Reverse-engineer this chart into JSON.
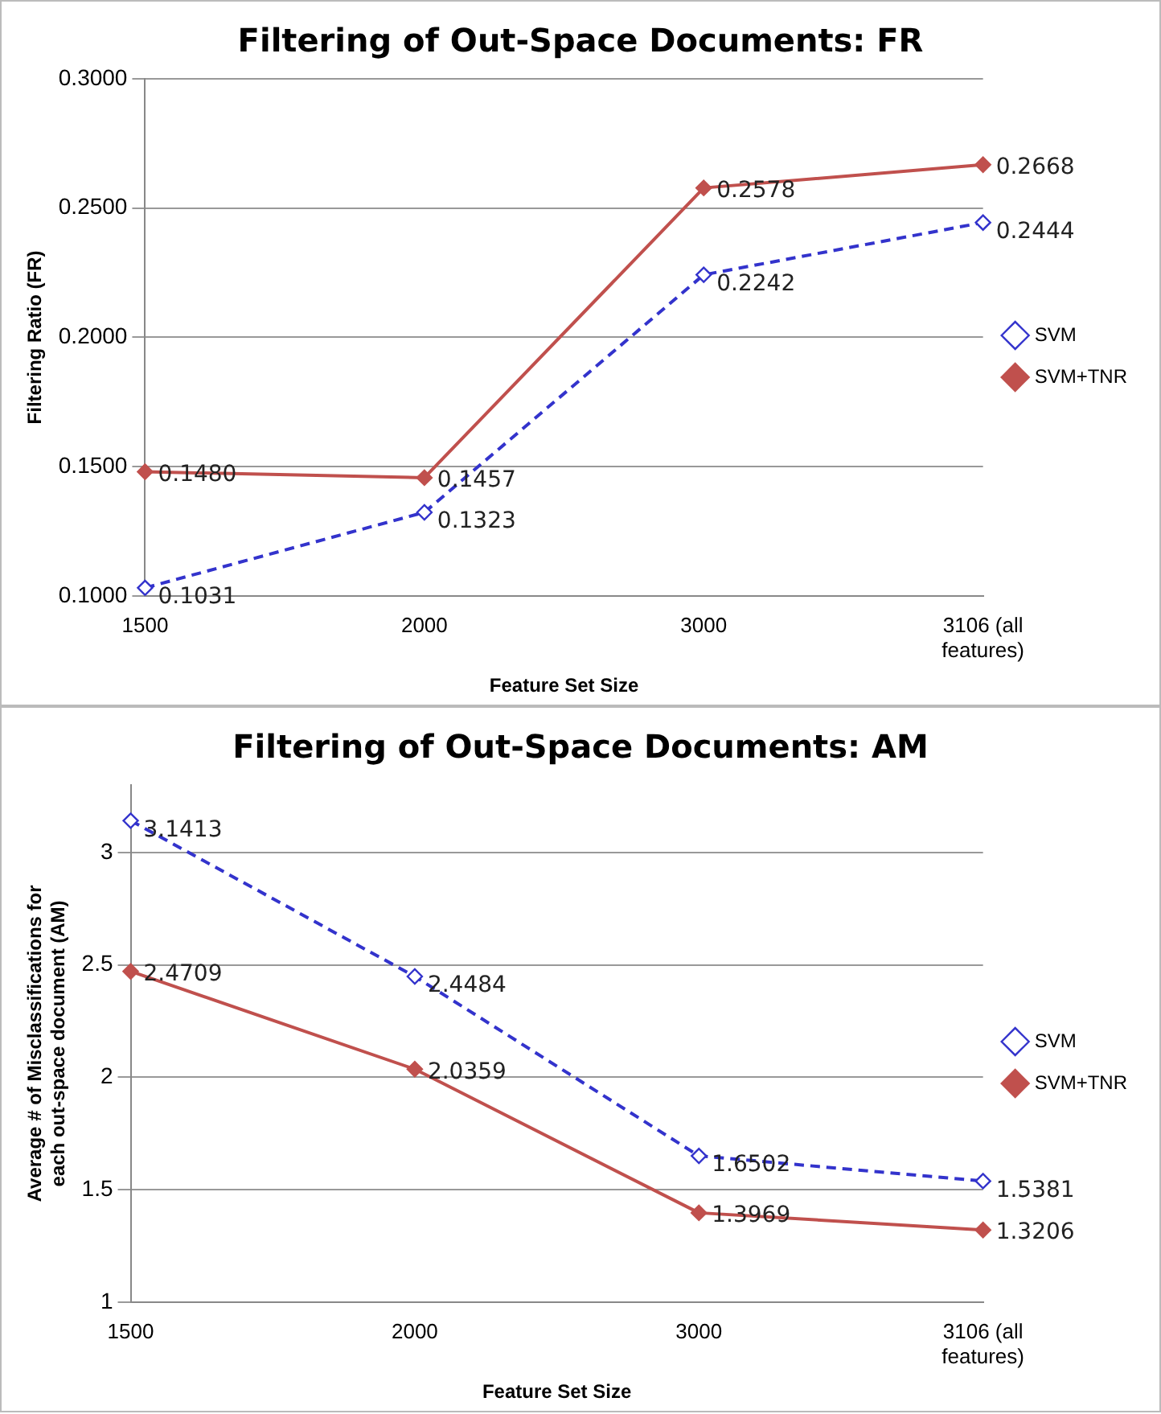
{
  "chart_data": [
    {
      "type": "line",
      "title": "Filtering of Out-Space Documents: FR",
      "xlabel": "Feature Set Size",
      "ylabel": "Filtering Ratio (FR)",
      "categories": [
        "1500",
        "2000",
        "3000",
        "3106 (all features)"
      ],
      "series": [
        {
          "name": "SVM",
          "color": "#3333cc",
          "line_style": "dashed",
          "values": [
            0.1031,
            0.1323,
            0.2242,
            0.2444
          ],
          "value_labels": [
            "0.1031",
            "0.1323",
            "0.2242",
            "0.2444"
          ]
        },
        {
          "name": "SVM+TNR",
          "color": "#c0504d",
          "line_style": "solid",
          "values": [
            0.148,
            0.1457,
            0.2578,
            0.2668
          ],
          "value_labels": [
            "0.1480",
            "0.1457",
            "0.2578",
            "0.2668"
          ]
        }
      ],
      "ylim": [
        0.1,
        0.3
      ],
      "yticks": [
        {
          "value": 0.1,
          "label": "0.1000"
        },
        {
          "value": 0.15,
          "label": "0.1500"
        },
        {
          "value": 0.2,
          "label": "0.2000"
        },
        {
          "value": 0.25,
          "label": "0.2500"
        },
        {
          "value": 0.3,
          "label": "0.3000"
        }
      ],
      "grid": "y",
      "legend": "right",
      "marker": "diamond"
    },
    {
      "type": "line",
      "title": "Filtering of Out-Space Documents: AM",
      "xlabel": "Feature Set Size",
      "ylabel": "Average # of Misclassifications for each out-space document (AM)",
      "categories": [
        "1500",
        "2000",
        "3000",
        "3106 (all features)"
      ],
      "series": [
        {
          "name": "SVM",
          "color": "#3333cc",
          "line_style": "dashed",
          "values": [
            3.1413,
            2.4484,
            1.6502,
            1.5381
          ],
          "value_labels": [
            "3.1413",
            "2.4484",
            "1.6502",
            "1.5381"
          ]
        },
        {
          "name": "SVM+TNR",
          "color": "#c0504d",
          "line_style": "solid",
          "values": [
            2.4709,
            2.0359,
            1.3969,
            1.3206
          ],
          "value_labels": [
            "2.4709",
            "2.0359",
            "1.3969",
            "1.3206"
          ]
        }
      ],
      "ylim": [
        1,
        3.3
      ],
      "yticks": [
        1,
        1.5,
        2,
        2.5,
        3
      ],
      "grid": "y",
      "legend": "right",
      "marker": "diamond"
    }
  ]
}
